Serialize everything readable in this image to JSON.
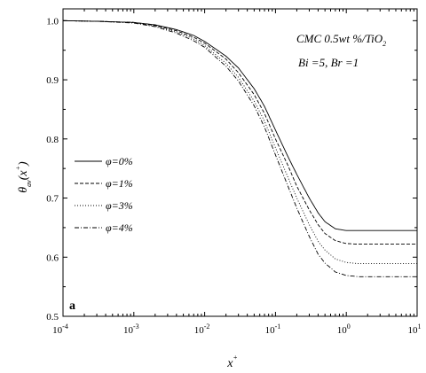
{
  "chart_data": {
    "type": "line",
    "x_scale": "log",
    "xlim": [
      0.0001,
      10
    ],
    "ylim": [
      0.5,
      1.02
    ],
    "x_ticks": [
      {
        "base": "10",
        "exp": "-4"
      },
      {
        "base": "10",
        "exp": "-3"
      },
      {
        "base": "10",
        "exp": "-2"
      },
      {
        "base": "10",
        "exp": "-1"
      },
      {
        "base": "10",
        "exp": "0"
      },
      {
        "base": "10",
        "exp": "1"
      }
    ],
    "y_ticks": [
      "0.5",
      "0.6",
      "0.7",
      "0.8",
      "0.9",
      "1.0"
    ],
    "xlabel": {
      "main": "x",
      "sup": "+"
    },
    "ylabel": {
      "theta": "θ",
      "sub": "av",
      "arg_open": "(x",
      "arg_sup": "+",
      "arg_close": ")"
    },
    "annotations": {
      "line1_main": "CMC 0.5wt %/TiO",
      "line1_sub": "2",
      "line2": "Bi =5, Br =1",
      "panel": "a"
    },
    "legend_position": "middle-left",
    "grid": false,
    "series": [
      {
        "name": "φ=0%",
        "dash": "solid",
        "x": [
          0.0001,
          0.0003,
          0.001,
          0.002,
          0.004,
          0.007,
          0.01,
          0.02,
          0.03,
          0.05,
          0.07,
          0.1,
          0.15,
          0.2,
          0.3,
          0.4,
          0.5,
          0.7,
          1.0,
          1.5,
          2,
          5,
          10
        ],
        "y": [
          1.0,
          0.999,
          0.997,
          0.993,
          0.985,
          0.975,
          0.965,
          0.94,
          0.92,
          0.885,
          0.855,
          0.815,
          0.77,
          0.74,
          0.7,
          0.675,
          0.66,
          0.648,
          0.645,
          0.645,
          0.645,
          0.645,
          0.645
        ]
      },
      {
        "name": "φ=1%",
        "dash": "dashed",
        "x": [
          0.0001,
          0.0003,
          0.001,
          0.002,
          0.004,
          0.007,
          0.01,
          0.02,
          0.03,
          0.05,
          0.07,
          0.1,
          0.15,
          0.2,
          0.3,
          0.4,
          0.5,
          0.7,
          1.0,
          1.5,
          2,
          5,
          10
        ],
        "y": [
          1.0,
          0.999,
          0.997,
          0.992,
          0.983,
          0.972,
          0.962,
          0.935,
          0.912,
          0.875,
          0.843,
          0.8,
          0.755,
          0.72,
          0.68,
          0.655,
          0.64,
          0.628,
          0.623,
          0.622,
          0.622,
          0.622,
          0.622
        ]
      },
      {
        "name": "φ=3%",
        "dash": "dotted",
        "x": [
          0.0001,
          0.0003,
          0.001,
          0.002,
          0.004,
          0.007,
          0.01,
          0.02,
          0.03,
          0.05,
          0.07,
          0.1,
          0.15,
          0.2,
          0.3,
          0.4,
          0.5,
          0.7,
          1.0,
          1.5,
          2,
          5,
          10
        ],
        "y": [
          1.0,
          0.999,
          0.997,
          0.991,
          0.981,
          0.969,
          0.958,
          0.928,
          0.904,
          0.864,
          0.83,
          0.785,
          0.735,
          0.7,
          0.655,
          0.627,
          0.612,
          0.597,
          0.591,
          0.589,
          0.589,
          0.589,
          0.589
        ]
      },
      {
        "name": "φ=4%",
        "dash": "dashdot",
        "x": [
          0.0001,
          0.0003,
          0.001,
          0.002,
          0.004,
          0.007,
          0.01,
          0.02,
          0.03,
          0.05,
          0.07,
          0.1,
          0.15,
          0.2,
          0.3,
          0.4,
          0.5,
          0.7,
          1.0,
          1.5,
          2,
          5,
          10
        ],
        "y": [
          1.0,
          0.999,
          0.996,
          0.99,
          0.979,
          0.966,
          0.955,
          0.923,
          0.898,
          0.856,
          0.82,
          0.773,
          0.72,
          0.683,
          0.635,
          0.605,
          0.59,
          0.575,
          0.569,
          0.567,
          0.567,
          0.567,
          0.567
        ]
      }
    ]
  }
}
